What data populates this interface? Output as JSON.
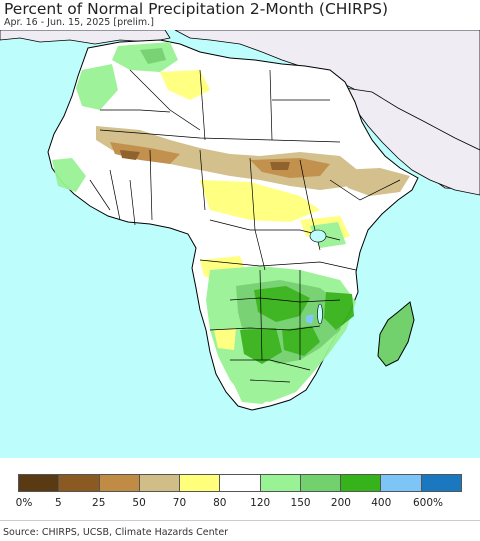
{
  "title": "Percent of Normal Precipitation 2-Month (CHIRPS)",
  "subtitle": "Apr. 16 - Jun. 15, 2025 [prelim.]",
  "source": "Source: CHIRPS, UCSB, Climate Hazards Center",
  "legend": {
    "labels": [
      "0%",
      "5",
      "25",
      "50",
      "70",
      "80",
      "120",
      "150",
      "200",
      "400",
      "600%"
    ],
    "swatches": [
      {
        "color": "#5a3a12"
      },
      {
        "color": "#8b5a23"
      },
      {
        "color": "#c08c45"
      },
      {
        "color": "#d1bd86"
      },
      {
        "color": "#ffff7c"
      },
      {
        "color": "#ffffff"
      },
      {
        "color": "#99f294"
      },
      {
        "color": "#72d06d"
      },
      {
        "color": "#36b31a"
      },
      {
        "color": "#7dc5f6"
      },
      {
        "color": "#1a78c0"
      }
    ]
  },
  "map": {
    "ocean_color": "#bdfdfc",
    "outside_land_color": "#f0ecf3",
    "land_base_color": "#ffffff",
    "boundary_color": "#000000"
  }
}
